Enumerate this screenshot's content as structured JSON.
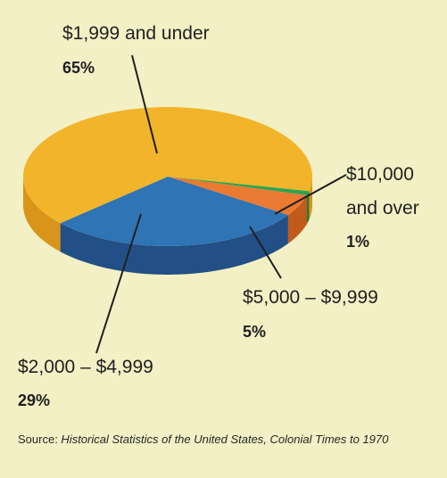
{
  "chart_data": {
    "type": "pie",
    "categories": [
      "$1,999 and under",
      "$2,000 – $4,999",
      "$5,000 – $9,999",
      "$10,000 and over"
    ],
    "values": [
      65,
      29,
      5,
      1
    ],
    "value_labels": [
      "65%",
      "29%",
      "5%",
      "1%"
    ],
    "label_lines": {
      "c3": [
        "$10,000",
        "and over"
      ]
    },
    "colors": {
      "c0_top": "#f2b42a",
      "c0_side": "#d8951a",
      "c1_top": "#2f74b5",
      "c1_side": "#214f86",
      "c2_top": "#ea7a32",
      "c2_side": "#c25a1c",
      "c3_top": "#2ea44f",
      "c3_side": "#1f7a38"
    }
  },
  "source": {
    "prefix": "Source: ",
    "title": "Historical Statistics of the United States, Colonial Times to 1970"
  }
}
